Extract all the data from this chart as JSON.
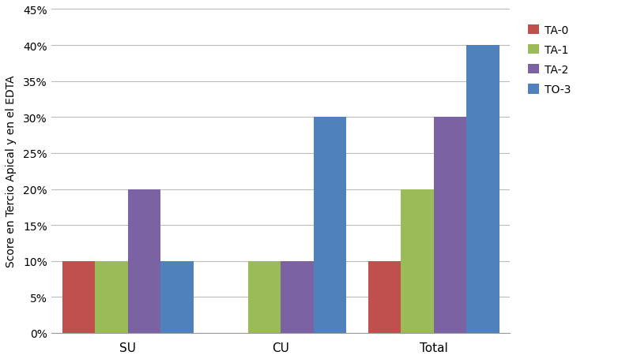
{
  "categories": [
    "SU",
    "CU",
    "Total"
  ],
  "series": {
    "TA-0": [
      10,
      0,
      10
    ],
    "TA-1": [
      10,
      10,
      20
    ],
    "TA-2": [
      20,
      10,
      30
    ],
    "TO-3": [
      10,
      30,
      40
    ]
  },
  "colors": {
    "TA-0": "#C0504D",
    "TA-1": "#9BBB59",
    "TA-2": "#7B62A3",
    "TO-3": "#4F81BD"
  },
  "ylabel": "Score en Tercio Apical y en el EDTA",
  "ylim": [
    0,
    45
  ],
  "yticks": [
    0,
    5,
    10,
    15,
    20,
    25,
    30,
    35,
    40,
    45
  ],
  "bar_width": 0.15,
  "legend_labels": [
    "TA-0",
    "TA-1",
    "TA-2",
    "TO-3"
  ],
  "background_color": "#ffffff",
  "grid_color": "#bbbbbb",
  "figsize": [
    7.87,
    4.56
  ],
  "dpi": 100
}
